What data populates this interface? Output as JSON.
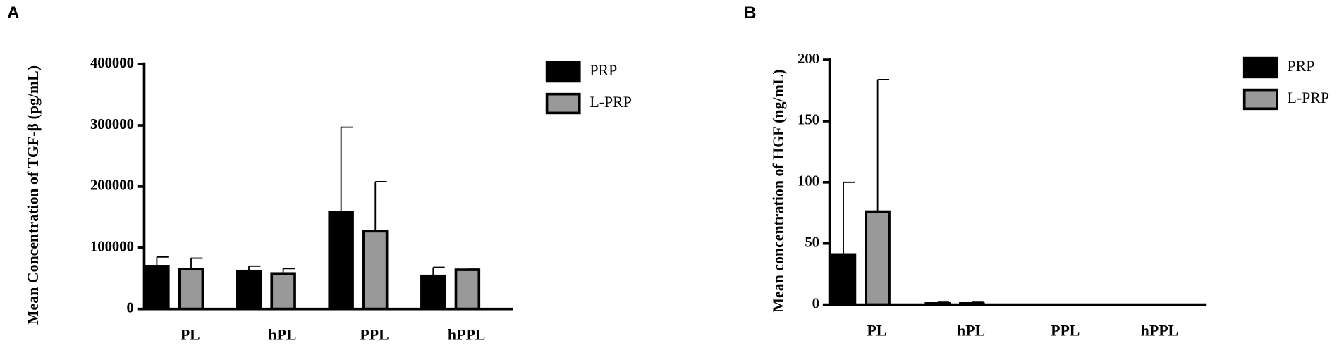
{
  "chart_data": [
    {
      "type": "bar",
      "panel_label": "A",
      "y_label": "Mean Concentration of TGF-β (pg/mL)",
      "categories": [
        "PL",
        "hPL",
        "PPL",
        "hPPL"
      ],
      "series": [
        {
          "name": "PRP",
          "color": "#000000",
          "values": [
            70000,
            62000,
            158000,
            54000
          ],
          "errors": [
            15000,
            8000,
            139000,
            14000
          ]
        },
        {
          "name": "L-PRP",
          "color": "#999999",
          "values": [
            65000,
            58000,
            127000,
            64000
          ],
          "errors": [
            18000,
            8000,
            81000,
            1000
          ]
        }
      ],
      "ylim": [
        0,
        400000
      ],
      "yticks": [
        0,
        100000,
        200000,
        300000,
        400000
      ],
      "legend": "right"
    },
    {
      "type": "bar",
      "panel_label": "B",
      "y_label": "Mean concentration of HGF (ng/mL)",
      "categories": [
        "PL",
        "hPL",
        "PPL",
        "hPPL"
      ],
      "series": [
        {
          "name": "PRP",
          "color": "#000000",
          "values": [
            41,
            1,
            0,
            0
          ],
          "errors": [
            59,
            1,
            0,
            0
          ]
        },
        {
          "name": "L-PRP",
          "color": "#999999",
          "values": [
            76,
            1,
            0,
            0
          ],
          "errors": [
            108,
            1,
            0,
            0
          ]
        }
      ],
      "ylim": [
        0,
        200
      ],
      "yticks": [
        0,
        50,
        100,
        150,
        200
      ],
      "legend": "right"
    }
  ]
}
